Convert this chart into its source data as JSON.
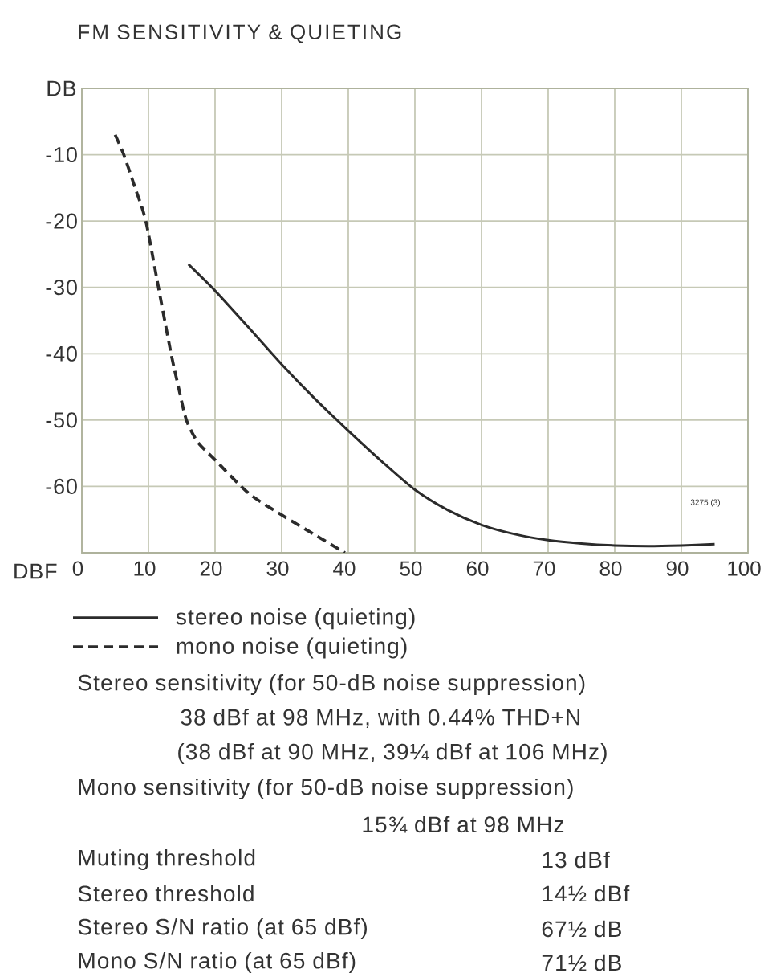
{
  "chart_data": {
    "type": "line",
    "title": "FM SENSITIVITY & QUIETING",
    "xlabel": "DBF",
    "ylabel": "DB",
    "xlim": [
      0,
      100
    ],
    "ylim": [
      -70,
      0
    ],
    "xticks": [
      0,
      10,
      20,
      30,
      40,
      50,
      60,
      70,
      80,
      90,
      100
    ],
    "yticks": [
      {
        "value": 0,
        "label": null
      },
      -10,
      -20,
      -30,
      -40,
      -50,
      -60,
      {
        "value": -70,
        "label": null
      }
    ],
    "grid": true,
    "legend": "bottom",
    "series": [
      {
        "name": "stereo noise (quieting)",
        "color": "#2b2b2b",
        "line_style": "solid",
        "x": [
          16,
          20,
          25,
          30,
          35,
          40,
          45,
          50,
          55,
          60,
          65,
          70,
          75,
          80,
          85,
          90,
          95
        ],
        "values": [
          -26.5,
          -30.5,
          -36,
          -41.6,
          -46.8,
          -51.6,
          -56.2,
          -60.5,
          -63.6,
          -65.8,
          -67.2,
          -68.1,
          -68.6,
          -68.9,
          -69,
          -68.9,
          -68.7
        ]
      },
      {
        "name": "mono noise (quieting)",
        "color": "#2b2b2b",
        "line_style": "dashed",
        "x": [
          5,
          6.3,
          8,
          9.6,
          11.5,
          13.4,
          14.5,
          15.7,
          17.4,
          20,
          25,
          30,
          35,
          39.5
        ],
        "values": [
          -7,
          -10,
          -15,
          -20,
          -30,
          -40,
          -45,
          -50,
          -53.3,
          -56,
          -61,
          -64.3,
          -67.3,
          -70
        ]
      }
    ],
    "annotations": [
      "Stereo sensitivity (for 50-dB noise suppression)",
      "38 dBf at 98 MHz, with 0.44% THD+N",
      "(38 dBf at 90 MHz, 39¼ dBf at 106 MHz)",
      "Mono sensitivity (for 50-dB noise suppression)",
      "15¾ dBf at 98 MHz",
      "Muting threshold",
      "13 dBf",
      "Stereo threshold",
      "14½ dBf",
      "Stereo S/N ratio (at 65 dBf)",
      "67½ dB",
      "Mono S/N ratio (at 65 dBf)",
      "71½ dB",
      "3275 (3)"
    ]
  }
}
